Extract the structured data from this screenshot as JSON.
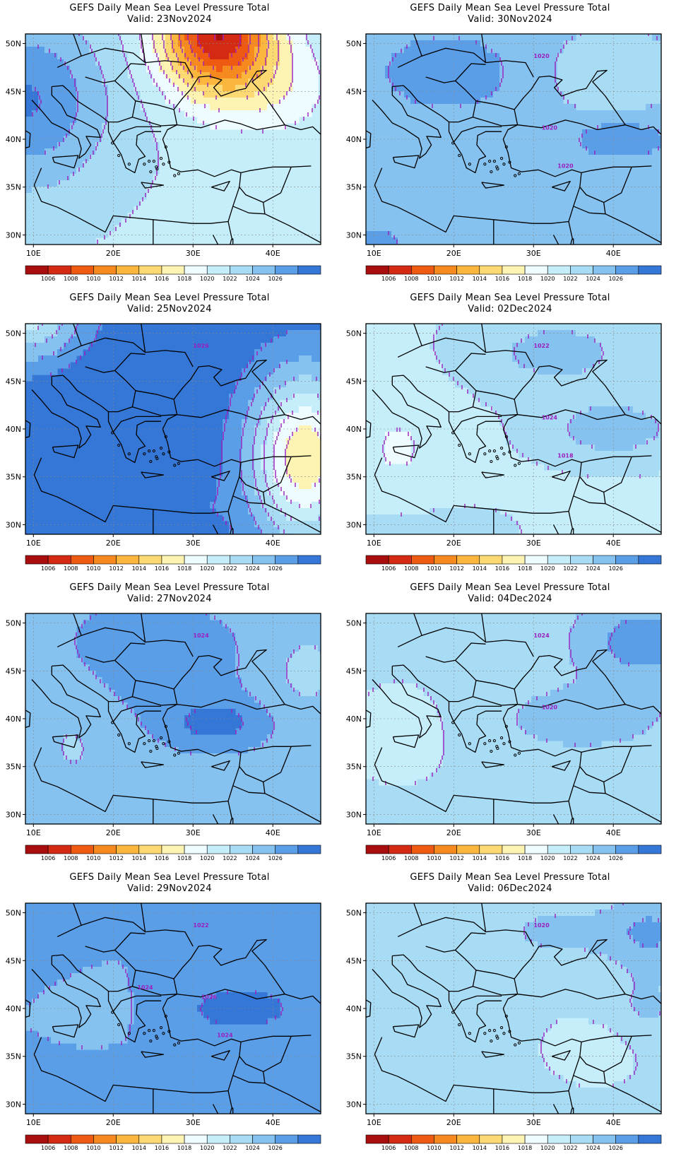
{
  "palette": {
    "levels": [
      1006,
      1008,
      1010,
      1012,
      1014,
      1016,
      1018,
      1020,
      1022,
      1024,
      1026
    ],
    "colors": [
      "#a80e0e",
      "#d42a14",
      "#ee5a12",
      "#f78a1e",
      "#fbb63e",
      "#fcd973",
      "#fdf3b2",
      "#eefcff",
      "#c6eefa",
      "#a8dcf5",
      "#85c2ef",
      "#5a9ee8",
      "#3577d6"
    ],
    "contour_color": "#9b1fbf",
    "coast_color": "#000000"
  },
  "axes": {
    "lat_ticks": [
      "50N",
      "45N",
      "40N",
      "35N",
      "30N"
    ],
    "lon_ticks": [
      "10E",
      "20E",
      "30E",
      "40E"
    ]
  },
  "panels": [
    {
      "id": "p1",
      "title": "GEFS Daily Mean Sea Level Pressure Total",
      "valid": "Valid: 23Nov2024",
      "base": 8,
      "field": "ridge_west_low_northeast",
      "labels": []
    },
    {
      "id": "p2",
      "title": "GEFS Daily Mean Sea Level Pressure Total",
      "valid": "Valid: 30Nov2024",
      "base": 9,
      "field": "blue_band",
      "labels": [
        "1020",
        "1020",
        "1020"
      ]
    },
    {
      "id": "p3",
      "title": "GEFS Daily Mean Sea Level Pressure Total",
      "valid": "Valid: 25Nov2024",
      "base": 12,
      "field": "high_west_low_east",
      "labels": [
        "1026"
      ]
    },
    {
      "id": "p4",
      "title": "GEFS Daily Mean Sea Level Pressure Total",
      "valid": "Valid: 02Dec2024",
      "base": 8,
      "field": "light_with_high",
      "labels": [
        "1022",
        "1024",
        "1018"
      ]
    },
    {
      "id": "p5",
      "title": "GEFS Daily Mean Sea Level Pressure Total",
      "valid": "Valid: 27Nov2024",
      "base": 11,
      "field": "high_center",
      "labels": [
        "1024"
      ]
    },
    {
      "id": "p6",
      "title": "GEFS Daily Mean Sea Level Pressure Total",
      "valid": "Valid: 04Dec2024",
      "base": 9,
      "field": "high_northeast",
      "labels": [
        "1024",
        "1020"
      ]
    },
    {
      "id": "p7",
      "title": "GEFS Daily Mean Sea Level Pressure Total",
      "valid": "Valid: 29Nov2024",
      "base": 11,
      "field": "high_center2",
      "labels": [
        "1022",
        "1026",
        "1024",
        "1024"
      ]
    },
    {
      "id": "p8",
      "title": "GEFS Daily Mean Sea Level Pressure Total",
      "valid": "Valid: 06Dec2024",
      "base": 8,
      "field": "light_east_high",
      "labels": [
        "1020"
      ]
    }
  ]
}
